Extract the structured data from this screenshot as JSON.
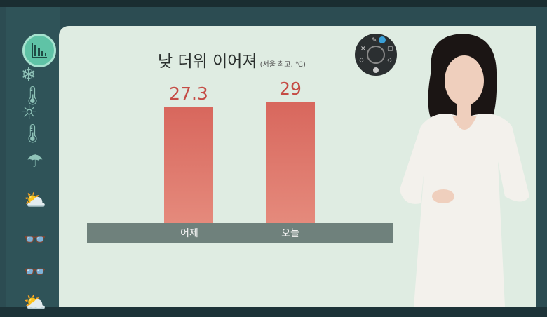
{
  "sidebar": {
    "items": [
      {
        "icon": "bar-chart-icon",
        "active": true
      },
      {
        "icon": "snowflake-thermometer-icon"
      },
      {
        "icon": "sun-thermometer-icon"
      },
      {
        "icon": "umbrella-icon"
      },
      {
        "icon": "sun-cloud-icon"
      },
      {
        "icon": "sunglasses-icon"
      },
      {
        "icon": "sunglasses-alt-icon"
      },
      {
        "icon": "sun-cloud-icon"
      }
    ]
  },
  "colors": {
    "bar": "#d9675c",
    "value": "#c54c45",
    "sidebar": "#2f5358",
    "board": "#dfece2",
    "active": "#5fc3a6"
  },
  "chart_data": {
    "type": "bar",
    "title": "낮 더위 이어져",
    "subtitle": "(서울 최고, ℃)",
    "categories": [
      "어제",
      "오늘"
    ],
    "values": [
      27.3,
      29
    ],
    "value_labels": [
      "27.3",
      "29"
    ],
    "grid": false
  }
}
